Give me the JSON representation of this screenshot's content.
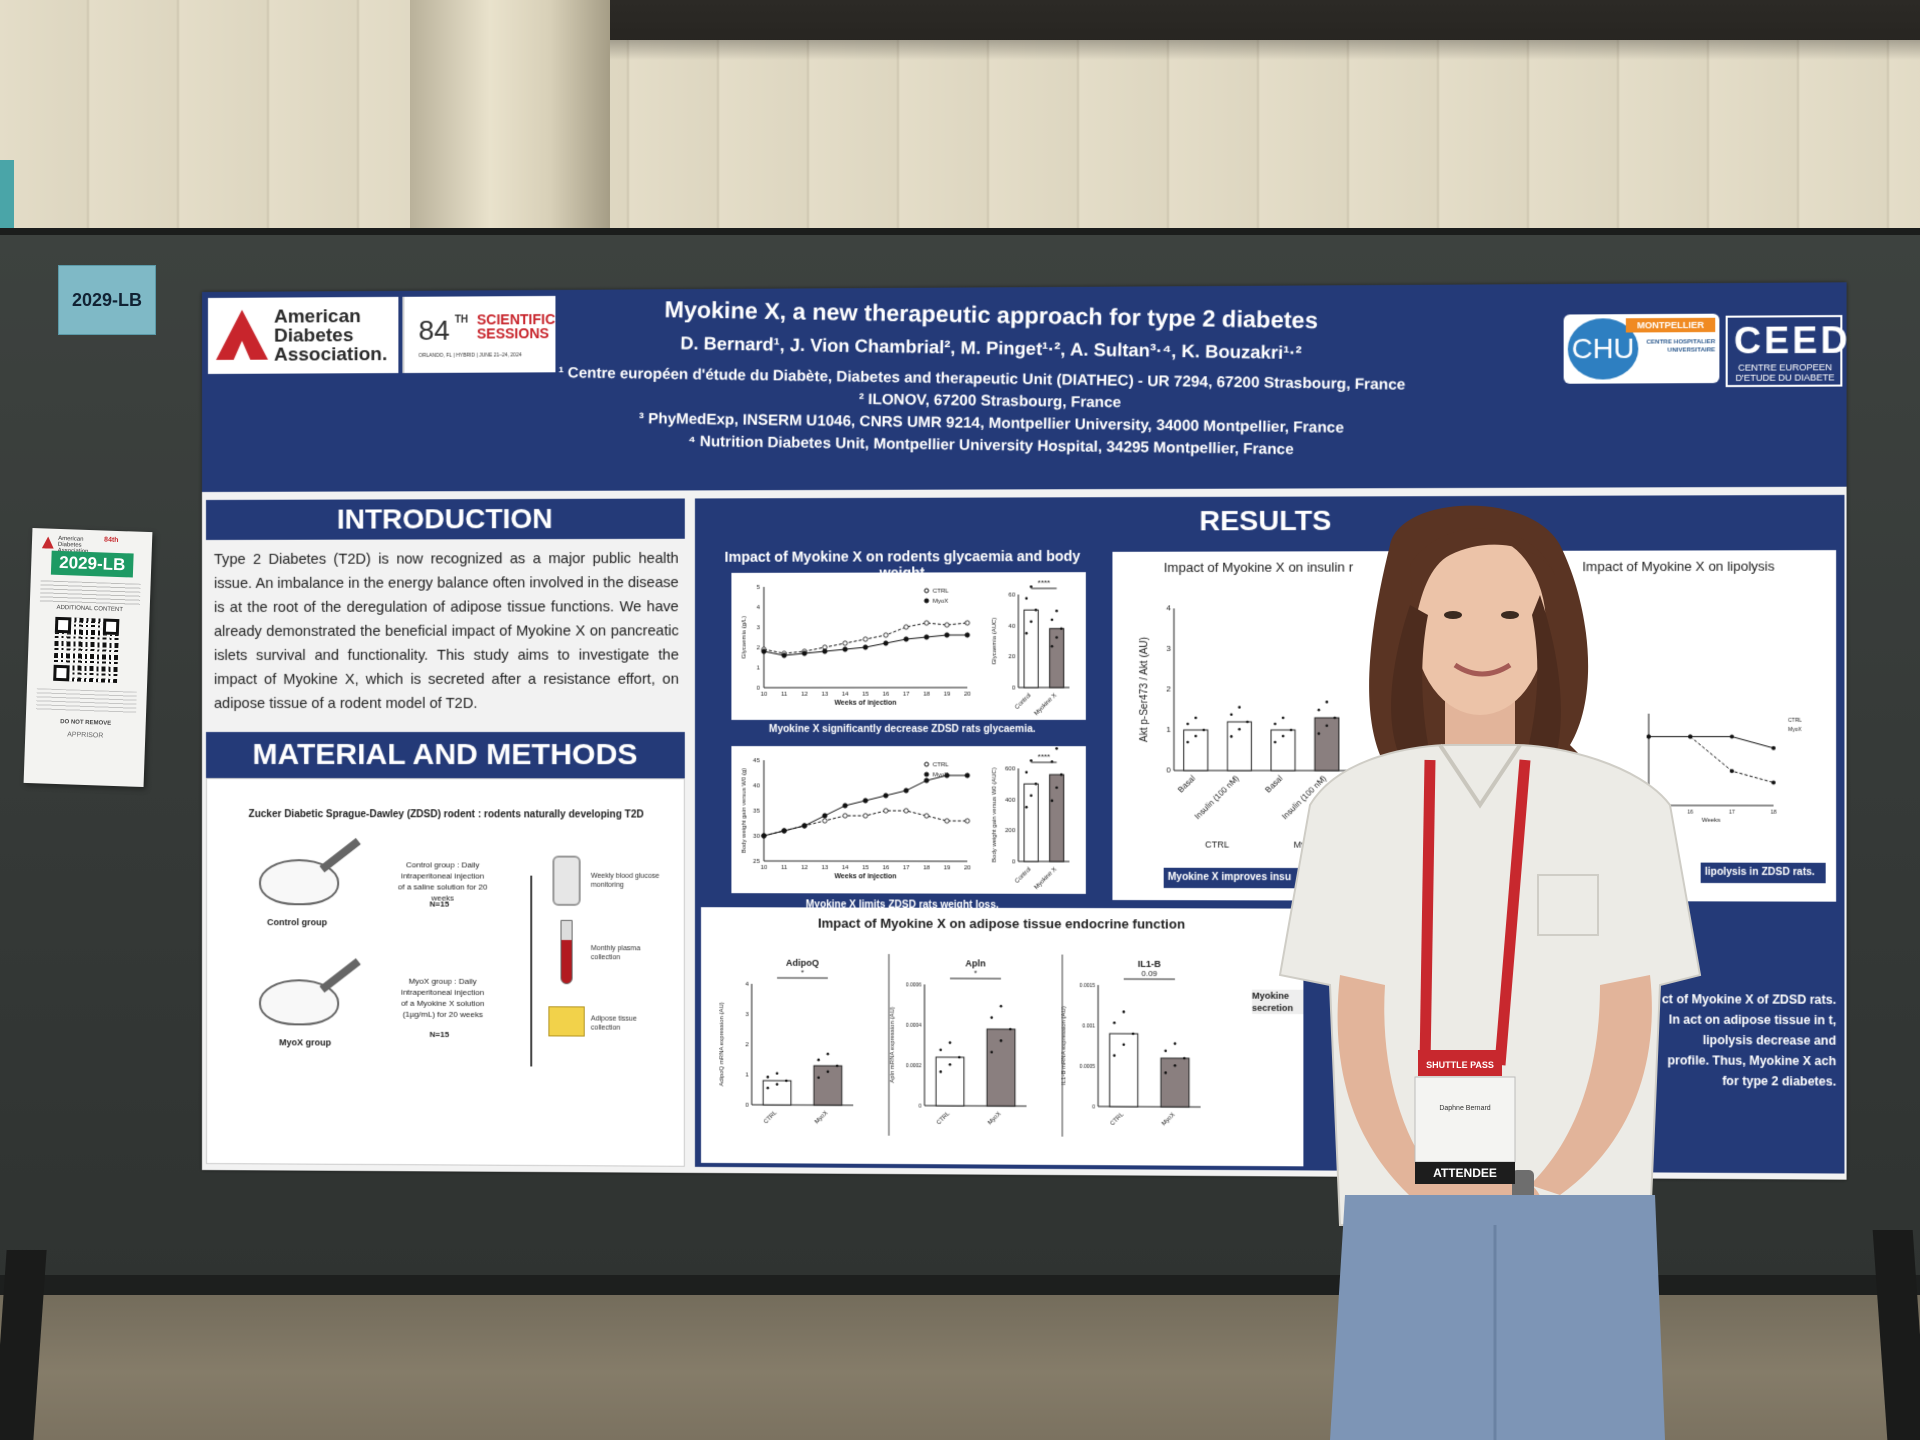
{
  "booth_number": "2029-LB",
  "flyer": {
    "org": "American Diabetes Association",
    "sessions": "84th",
    "code": "2029-LB",
    "additional": "ADDITIONAL CONTENT",
    "do_not_remove": "DO NOT REMOVE",
    "sponsor": "APPRISOR"
  },
  "poster": {
    "org_logo_text": "American Diabetes Association.",
    "sessions_number": "84",
    "sessions_th": "TH",
    "sessions_words": "SCIENTIFIC SESSIONS",
    "sessions_location": "ORLANDO, FL | HYBRID | JUNE 21–24, 2024",
    "title": "Myokine X, a new therapeutic approach for type 2 diabetes",
    "authors": "D. Bernard¹, J. Vion Chambrial², M. Pinget¹·², A. Sultan³·⁴, K. Bouzakri¹·²",
    "affiliations": [
      "¹ Centre européen d'étude du Diabète, Diabetes and therapeutic Unit (DIATHEC) - UR 7294, 67200 Strasbourg, France",
      "² ILONOV, 67200 Strasbourg, France",
      "³ PhyMedExp, INSERM U1046, CNRS UMR 9214, Montpellier University, 34000 Montpellier, France",
      "⁴ Nutrition Diabetes Unit, Montpellier University Hospital, 34295 Montpellier, France"
    ],
    "chu_logo": "CHU",
    "chu_ribbon": "MONTPELLIER",
    "chu_sub": "CENTRE HOSPITALIER UNIVERSITAIRE",
    "ceed_logo": "CEED",
    "ceed_text": "CENTRE EUROPEEN D'ETUDE DU DIABETE",
    "introduction": {
      "heading": "INTRODUCTION",
      "text": "Type 2 Diabetes (T2D) is now recognized as a major public health issue. An imbalance in the energy balance often involved in the disease is at the root of the deregulation of adipose tissue functions. We have already demonstrated the beneficial impact of Myokine X on pancreatic islets survival and functionality. This study aims to investigate the impact of Myokine X, which is secreted after a resistance effort, on adipose tissue of a rodent model of T2D."
    },
    "methods": {
      "heading": "MATERIAL AND METHODS",
      "model": "Zucker Diabetic Sprague-Dawley (ZDSD) rodent : rodents naturally developing T2D",
      "control_label": "Control group",
      "control_desc": "Control group : Daily intraperitoneal injection of a saline solution for 20 weeks",
      "control_n": "N=15",
      "myox_label": "MyoX group",
      "myox_desc": "MyoX group : Daily intraperitoneal injection of a Myokine X solution (1µg/mL) for 20 weeks",
      "myox_n": "N=15",
      "glucose": "Weekly blood glucose monitoring",
      "plasma": "Monthly plasma collection",
      "tissue": "Adipose tissue collection"
    },
    "results": {
      "heading": "RESULTS",
      "glyc_title": "Impact of Myokine X on rodents glycaemia and body weight",
      "chart1_caption": "Myokine X significantly decrease ZDSD rats glycaemia.",
      "chart2_caption": "Myokine X limits ZDSD rats weight loss.",
      "insulin_title": "Impact of Myokine X on insulin r",
      "lipolysis_title": "Impact of Myokine X on lipolysis",
      "insulin_caption": "Myokine X improves insu",
      "lipo_caption": "lipolysis in ZDSD rats.",
      "endocrine_title": "Impact of Myokine X on adipose tissue endocrine function",
      "endocrine_note": "Myokine secretion",
      "conclusion_text": "ct of Myokine X of ZDSD rats. In act on adipose tissue in t, lipolysis decrease and profile. Thus, Myokine X ach for type 2 diabetes."
    }
  },
  "chart_data": [
    {
      "type": "line",
      "title": "",
      "xlabel": "Weeks of injection",
      "ylabel": "Glycaemia (g/L)",
      "x": [
        10,
        11,
        12,
        13,
        14,
        15,
        16,
        17,
        18,
        19,
        20
      ],
      "ylim": [
        0,
        5
      ],
      "yticks": [
        0,
        1,
        2,
        3,
        4,
        5
      ],
      "series": [
        {
          "name": "CTRL",
          "values": [
            1.9,
            1.7,
            1.8,
            2.0,
            2.2,
            2.4,
            2.6,
            3.0,
            3.2,
            3.1,
            3.2
          ]
        },
        {
          "name": "MyoX",
          "values": [
            1.8,
            1.6,
            1.7,
            1.8,
            1.9,
            2.0,
            2.2,
            2.4,
            2.5,
            2.6,
            2.6
          ]
        }
      ]
    },
    {
      "type": "bar",
      "title": "",
      "ylabel": "Glycaemia (AUC)",
      "categories": [
        "Control",
        "Myokine X"
      ],
      "values": [
        50,
        38
      ],
      "ylim": [
        0,
        60
      ],
      "yticks": [
        0,
        20,
        40,
        60
      ],
      "significance": "****"
    },
    {
      "type": "line",
      "title": "",
      "xlabel": "Weeks of injection",
      "ylabel": "Body weight gain versus W0 (g)",
      "x": [
        10,
        11,
        12,
        13,
        14,
        15,
        16,
        17,
        18,
        19,
        20
      ],
      "ylim": [
        25,
        45
      ],
      "yticks": [
        25,
        30,
        35,
        40,
        45
      ],
      "series": [
        {
          "name": "CTRL",
          "values": [
            30,
            31,
            32,
            33,
            34,
            34,
            35,
            35,
            34,
            33,
            33
          ]
        },
        {
          "name": "MyoX",
          "values": [
            30,
            31,
            32,
            34,
            36,
            37,
            38,
            39,
            41,
            42,
            42
          ]
        }
      ]
    },
    {
      "type": "bar",
      "title": "",
      "ylabel": "Body weight gain versus W0 (AUC)",
      "categories": [
        "Control",
        "Myokine X"
      ],
      "values": [
        500,
        560
      ],
      "ylim": [
        0,
        600
      ],
      "yticks": [
        0,
        200,
        400,
        600
      ],
      "significance": "****"
    },
    {
      "type": "bar",
      "title": "",
      "ylabel": "Akt p-Ser473 / Akt (AU)",
      "categories": [
        "Basal",
        "Insulin (100 nM)",
        "Basal",
        "Insulin (100 nM)"
      ],
      "groups": [
        "CTRL",
        "CTRL",
        "MyoX",
        "MyoX"
      ],
      "values": [
        1.0,
        1.2,
        1.0,
        1.3
      ],
      "ylim": [
        0,
        4
      ],
      "yticks": [
        0,
        1,
        2,
        3,
        4
      ]
    },
    {
      "type": "line",
      "title": "",
      "xlabel": "Weeks",
      "x": [
        15,
        16,
        17,
        18
      ],
      "series": [
        {
          "name": "CTRL",
          "values": [
            6,
            6,
            6,
            5.5
          ]
        },
        {
          "name": "MyoX",
          "values": [
            6,
            6,
            4.5,
            4
          ]
        }
      ]
    },
    {
      "type": "bar",
      "title": "AdipoQ",
      "ylabel": "AdipoQ mRNA expression (AU)",
      "categories": [
        "CTRL",
        "MyoX"
      ],
      "values": [
        0.8,
        1.3
      ],
      "ylim": [
        0,
        4
      ],
      "yticks": [
        0,
        1,
        2,
        3,
        4
      ],
      "significance": "*"
    },
    {
      "type": "bar",
      "title": "Apln",
      "ylabel": "Apln mRNA expression (AU)",
      "categories": [
        "CTRL",
        "MyoX"
      ],
      "values": [
        0.00024,
        0.00038
      ],
      "ylim": [
        0,
        0.0006
      ],
      "yticks": [
        0.0,
        0.0002,
        0.0004,
        0.0006
      ],
      "significance": "*"
    },
    {
      "type": "bar",
      "title": "IL1-B",
      "ylabel": "IL1-B mRNA expression (AU)",
      "categories": [
        "CTRL",
        "MyoX"
      ],
      "values": [
        0.0009,
        0.0006
      ],
      "ylim": [
        0,
        0.0015
      ],
      "yticks": [
        0.0,
        0.0005,
        0.001,
        0.0015
      ],
      "significance": "0.09"
    }
  ],
  "badge": {
    "shuttle": "SHUTTLE PASS",
    "name": "Daphne Bernard",
    "attendee": "ATTENDEE"
  },
  "colors": {
    "poster_blue": "#243a78",
    "ada_red": "#c8252c",
    "lanyard_red": "#c8282e",
    "bar_dark": "#8a7f7f"
  }
}
